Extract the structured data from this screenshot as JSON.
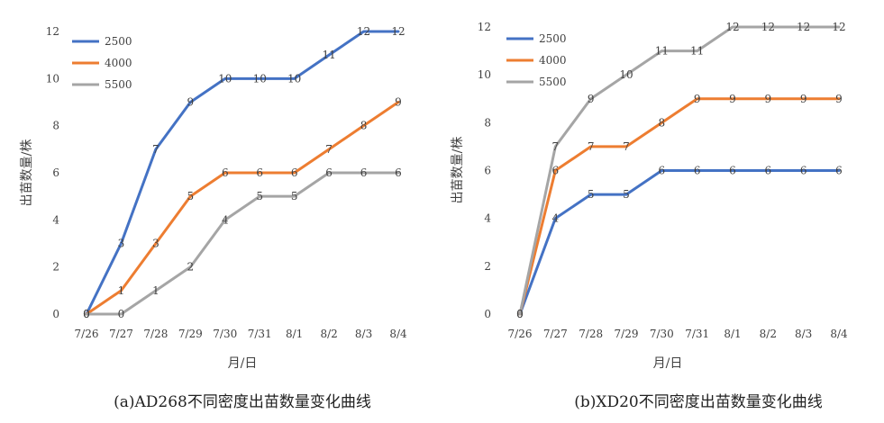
{
  "chart_data": [
    {
      "type": "line",
      "caption": "(a)AD268不同密度出苗数量变化曲线",
      "xlabel": "月/日",
      "ylabel": "出苗数量/株",
      "categories": [
        "7/26",
        "7/27",
        "7/28",
        "7/29",
        "7/30",
        "7/31",
        "8/1",
        "8/2",
        "8/3",
        "8/4"
      ],
      "ylim": [
        0,
        12
      ],
      "yticks": [
        0,
        2,
        4,
        6,
        8,
        10,
        12
      ],
      "grid": false,
      "legend_position": "top-left",
      "series": [
        {
          "name": "2500",
          "color": "#4472C4",
          "values": [
            0,
            3,
            7,
            9,
            10,
            10,
            10,
            11,
            12,
            12
          ]
        },
        {
          "name": "4000",
          "color": "#ED7D31",
          "values": [
            0,
            1,
            3,
            5,
            6,
            6,
            6,
            7,
            8,
            9
          ]
        },
        {
          "name": "5500",
          "color": "#A5A5A5",
          "values": [
            0,
            0,
            1,
            2,
            4,
            5,
            5,
            6,
            6,
            6
          ]
        }
      ]
    },
    {
      "type": "line",
      "caption": "(b)XD20不同密度出苗数量变化曲线",
      "xlabel": "月/日",
      "ylabel": "出苗数量/株",
      "categories": [
        "7/26",
        "7/27",
        "7/28",
        "7/29",
        "7/30",
        "7/31",
        "8/1",
        "8/2",
        "8/3",
        "8/4"
      ],
      "ylim": [
        0,
        12
      ],
      "yticks": [
        0,
        2,
        4,
        6,
        8,
        10,
        12
      ],
      "grid": false,
      "legend_position": "top-left",
      "series": [
        {
          "name": "2500",
          "color": "#4472C4",
          "values": [
            0,
            4,
            5,
            5,
            6,
            6,
            6,
            6,
            6,
            6
          ]
        },
        {
          "name": "4000",
          "color": "#ED7D31",
          "values": [
            0,
            6,
            7,
            7,
            8,
            9,
            9,
            9,
            9,
            9
          ]
        },
        {
          "name": "5500",
          "color": "#A5A5A5",
          "values": [
            0,
            7,
            9,
            10,
            11,
            11,
            12,
            12,
            12,
            12
          ]
        }
      ]
    }
  ]
}
